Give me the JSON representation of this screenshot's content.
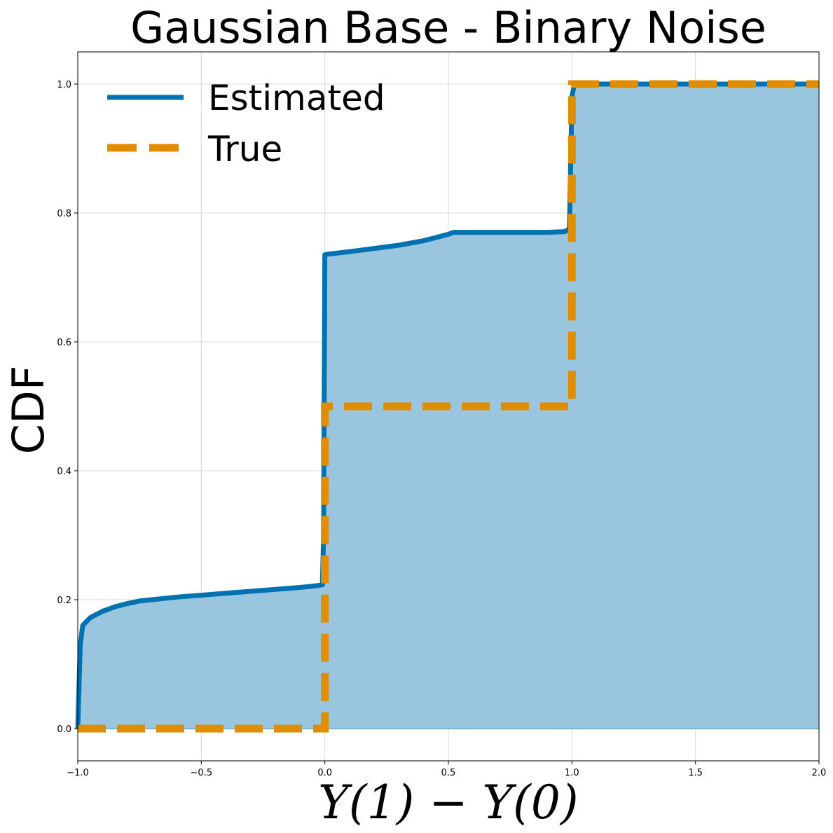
{
  "chart_data": {
    "type": "line",
    "title": "Gaussian Base - Binary Noise",
    "xlabel": "Y(1) − Y(0)",
    "ylabel": "CDF",
    "xlim": [
      -1.0,
      2.0
    ],
    "ylim": [
      -0.05,
      1.05
    ],
    "grid": true,
    "legend_position": "top-left",
    "x_ticks": [
      "−1.0",
      "−0.5",
      "0.0",
      "0.5",
      "1.0",
      "1.5",
      "2.0"
    ],
    "y_ticks": [
      "0.0",
      "0.2",
      "0.4",
      "0.6",
      "0.8",
      "1.0"
    ],
    "series": [
      {
        "name": "Estimated",
        "style": "solid",
        "color": "#0072b2",
        "fill": true,
        "fill_color": "#99c5df",
        "x": [
          -1.0,
          -0.99,
          -0.98,
          -0.95,
          -0.9,
          -0.85,
          -0.8,
          -0.75,
          -0.7,
          -0.6,
          -0.5,
          -0.4,
          -0.3,
          -0.2,
          -0.1,
          -0.05,
          -0.01,
          -0.005,
          0.0,
          0.01,
          0.1,
          0.2,
          0.3,
          0.4,
          0.45,
          0.5,
          0.52,
          0.6,
          0.7,
          0.8,
          0.9,
          0.97,
          0.99,
          1.0,
          1.01,
          1.05,
          1.5,
          2.0
        ],
        "y": [
          0.0,
          0.13,
          0.16,
          0.172,
          0.182,
          0.189,
          0.194,
          0.198,
          0.2,
          0.204,
          0.207,
          0.21,
          0.213,
          0.216,
          0.219,
          0.221,
          0.223,
          0.3,
          0.735,
          0.736,
          0.74,
          0.745,
          0.75,
          0.757,
          0.762,
          0.767,
          0.77,
          0.77,
          0.77,
          0.77,
          0.77,
          0.771,
          0.775,
          0.98,
          1.0,
          1.0,
          1.0,
          1.0
        ]
      },
      {
        "name": "True",
        "style": "dashed",
        "color": "#e08e00",
        "x": [
          -1.0,
          0.0,
          0.0,
          1.0,
          1.0,
          2.0
        ],
        "y": [
          0.0,
          0.0,
          0.5,
          0.5,
          1.0,
          1.0
        ]
      }
    ]
  }
}
